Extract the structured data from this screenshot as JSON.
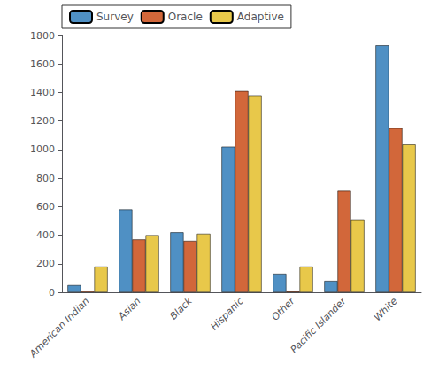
{
  "chart_data": {
    "type": "bar",
    "categories": [
      "American Indian",
      "Asian",
      "Black",
      "Hispanic",
      "Other",
      "Pacific Islander",
      "White"
    ],
    "series": [
      {
        "name": "Survey",
        "color": "#4f90c4",
        "values": [
          50,
          580,
          420,
          1020,
          130,
          80,
          1730
        ]
      },
      {
        "name": "Oracle",
        "color": "#d2673a",
        "values": [
          10,
          370,
          360,
          1410,
          8,
          710,
          1150
        ]
      },
      {
        "name": "Adaptive",
        "color": "#e8c84a",
        "values": [
          180,
          400,
          410,
          1380,
          180,
          510,
          1035
        ]
      }
    ],
    "ylim": [
      0,
      1800
    ],
    "yticks": [
      0,
      200,
      400,
      600,
      800,
      1000,
      1200,
      1400,
      1600,
      1800
    ],
    "grid": false,
    "legend": "upper left"
  }
}
